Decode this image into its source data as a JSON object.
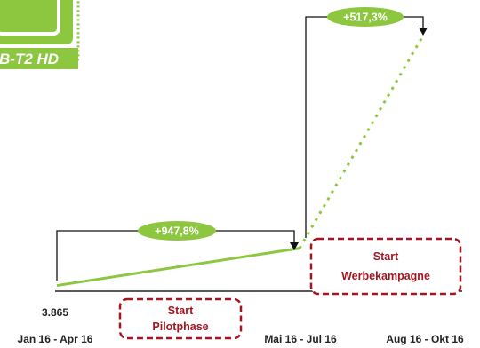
{
  "logo": {
    "text": "B-T2 HD"
  },
  "colors": {
    "accent": "#8dc63f",
    "axis": "#222222",
    "annotation_box": "#a31621",
    "text": "#222222"
  },
  "chart_data": {
    "type": "line",
    "categories": [
      "Jan 16 - Apr 16",
      "Mai 16 - Jul 16",
      "Aug 16 - Okt 16"
    ],
    "series": [
      {
        "values": [
          3865,
          40497,
          249987
        ]
      }
    ],
    "segment_styles": [
      "solid",
      "dotted"
    ],
    "data_labels": [
      {
        "index": 0,
        "text": "3.865"
      }
    ],
    "growth_annotations": [
      {
        "from": 0,
        "to": 1,
        "text": "+947,8%"
      },
      {
        "from": 1,
        "to": 2,
        "text": "+517,3%"
      }
    ],
    "events": [
      {
        "position": 0.5,
        "line1": "Start",
        "line2": "Pilotphase"
      },
      {
        "position": 1.5,
        "line1": "Start",
        "line2": "Werbekampagne"
      }
    ],
    "title": "",
    "xlabel": "",
    "ylabel": "",
    "grid": false,
    "legend": "none"
  }
}
